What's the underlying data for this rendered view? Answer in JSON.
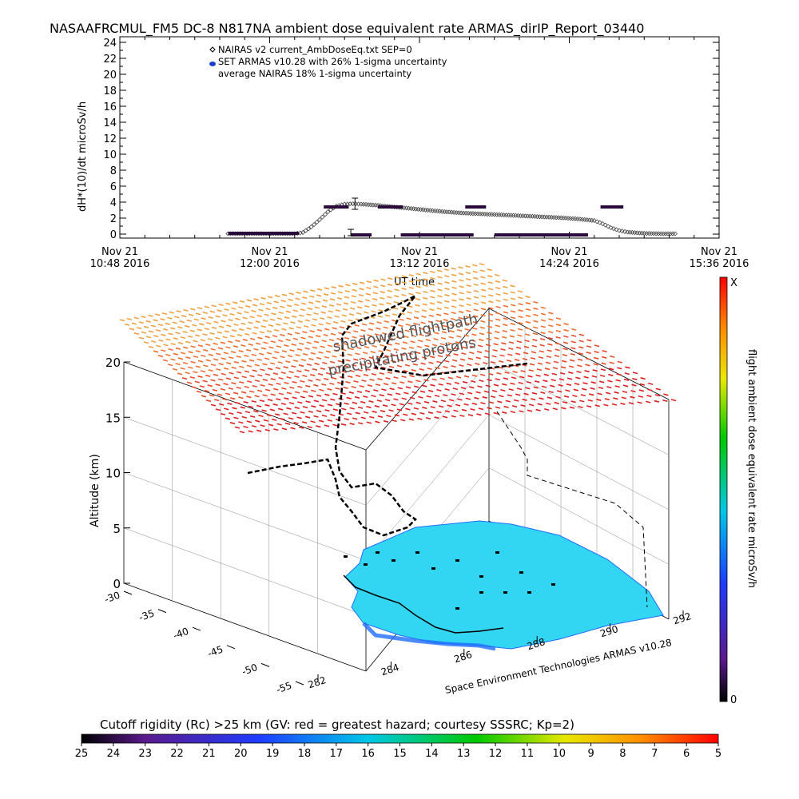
{
  "title": "NASAAFRCMUL_FM5 DC-8 N817NA ambient dose equivalent rate ARMAS_dirIP_Report_03440",
  "colors": {
    "nairas": "#000000",
    "armas": "#2a0a3a",
    "armas_legend_dot": "#1b3fd0",
    "terrain": "#33d6f2",
    "terrain_deep": "#1f6dff"
  },
  "chart_data": [
    {
      "type": "scatter",
      "title": "",
      "xlabel": "UT time",
      "ylabel": "dH*(10)/dt microSv/h",
      "ylim": [
        0,
        24
      ],
      "yticks": [
        "0",
        "2",
        "4",
        "6",
        "8",
        "10",
        "12",
        "14",
        "16",
        "18",
        "20",
        "22",
        "24"
      ],
      "xticks": [
        {
          "line1": "Nov 21",
          "line2": "10:48 2016"
        },
        {
          "line1": "Nov 21",
          "line2": "12:00 2016"
        },
        {
          "line1": "Nov 21",
          "line2": "13:12 2016"
        },
        {
          "line1": "Nov 21",
          "line2": "14:24 2016"
        },
        {
          "line1": "Nov 21",
          "line2": "15:36 2016"
        }
      ],
      "xlim_minutes": [
        0,
        288
      ],
      "legend": {
        "placement": "top-left",
        "entries": [
          "NAIRAS v2 current_AmbDoseEq.txt SEP=0",
          "SET ARMAS v10.28 with 26% 1-sigma uncertainty",
          "average NAIRAS 18% 1-sigma uncertainty"
        ]
      },
      "series": [
        {
          "name": "NAIRAS v2 current_AmbDoseEq.txt SEP=0",
          "marker": "diamond",
          "points_minutes": [
            [
              52,
              0.05
            ],
            [
              60,
              0.05
            ],
            [
              68,
              0.05
            ],
            [
              76,
              0.05
            ],
            [
              84,
              0.05
            ],
            [
              88,
              0.2
            ],
            [
              92,
              0.9
            ],
            [
              96,
              1.8
            ],
            [
              100,
              2.8
            ],
            [
              104,
              3.5
            ],
            [
              108,
              3.75
            ],
            [
              112,
              3.8
            ],
            [
              116,
              3.75
            ],
            [
              124,
              3.6
            ],
            [
              132,
              3.4
            ],
            [
              140,
              3.2
            ],
            [
              148,
              3.0
            ],
            [
              156,
              2.8
            ],
            [
              164,
              2.65
            ],
            [
              172,
              2.55
            ],
            [
              180,
              2.45
            ],
            [
              188,
              2.35
            ],
            [
              196,
              2.25
            ],
            [
              204,
              2.15
            ],
            [
              212,
              2.05
            ],
            [
              220,
              1.9
            ],
            [
              228,
              1.7
            ],
            [
              232,
              1.3
            ],
            [
              236,
              0.8
            ],
            [
              240,
              0.45
            ],
            [
              244,
              0.25
            ],
            [
              252,
              0.1
            ],
            [
              260,
              0.05
            ],
            [
              268,
              0.05
            ]
          ]
        },
        {
          "name": "SET ARMAS v10.28 with 26% 1-sigma uncertainty",
          "marker": "dash",
          "segments_minutes": [
            {
              "x0": 52,
              "x1": 86,
              "y": 0.1
            },
            {
              "x0": 98,
              "x1": 110,
              "y": 3.4
            },
            {
              "x0": 111,
              "x1": 121,
              "y": -0.1
            },
            {
              "x0": 124,
              "x1": 136,
              "y": 3.4
            },
            {
              "x0": 135,
              "x1": 170,
              "y": -0.1
            },
            {
              "x0": 166,
              "x1": 176,
              "y": 3.4
            },
            {
              "x0": 180,
              "x1": 225,
              "y": -0.1
            },
            {
              "x0": 231,
              "x1": 242,
              "y": 3.4
            }
          ]
        }
      ],
      "error_bars_minutes": [
        {
          "x": 113,
          "y": 3.8,
          "low": 3.1,
          "high": 4.5
        },
        {
          "x": 111,
          "y": 0.2,
          "low": -0.2,
          "high": 0.6
        }
      ]
    },
    {
      "type": "3d-surface",
      "title": "",
      "zlabel": "Altitude (km)",
      "zticks": [
        "0",
        "5",
        "10",
        "15",
        "20"
      ],
      "xticks": [
        "282",
        "284",
        "286",
        "288",
        "290",
        "292"
      ],
      "yticks": [
        "-30",
        "-35",
        "-40",
        "-45",
        "-50",
        "-55"
      ],
      "annotations": [
        "shadowed flightpath",
        "precipitating protons"
      ],
      "credit": "Space Environment Technologies ARMAS v10.28",
      "colorbar_right": {
        "label": "flight ambient dose equivalent rate microSv/h",
        "max_label": "X",
        "min_label": "0"
      },
      "colorbar_bottom": {
        "label": "Cutoff rigidity (Rc) >25 km (GV: red = greatest hazard; courtesy SSSRC; Kp=2)",
        "ticks": [
          "25",
          "24",
          "23",
          "22",
          "21",
          "20",
          "19",
          "18",
          "17",
          "16",
          "15",
          "14",
          "13",
          "12",
          "11",
          "10",
          "9",
          "8",
          "7",
          "6",
          "5"
        ]
      }
    }
  ]
}
